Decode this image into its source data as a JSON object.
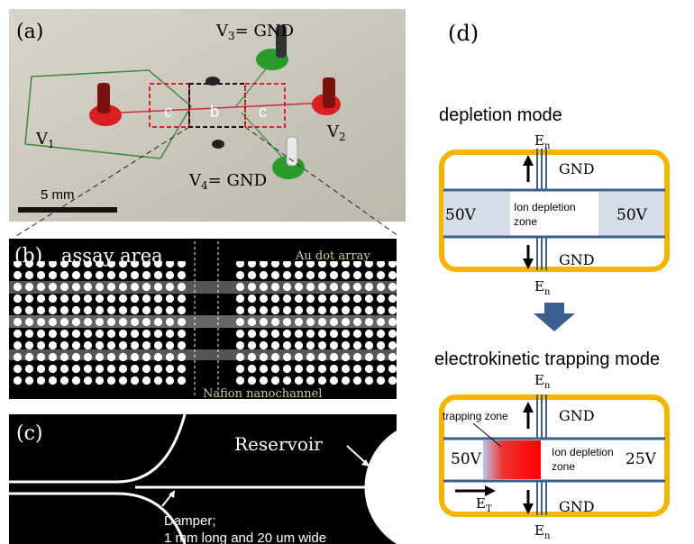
{
  "panel_a": {
    "label": "(a)",
    "v3": [
      "V",
      "3",
      "= GND"
    ],
    "v1": [
      "V",
      "1"
    ],
    "v2": [
      "V",
      "2"
    ],
    "v4": [
      "V",
      "4",
      "= GND"
    ],
    "box_left": "c",
    "box_middle": "b",
    "box_right": "c",
    "scale": "5 mm"
  },
  "panel_b": {
    "label": "(b)",
    "title": "assay area",
    "dots": "Au dot array",
    "channel": "Nafion nanochannel"
  },
  "panel_c": {
    "label": "(c)",
    "reservoir": "Reservoir",
    "damper": [
      "Damper;",
      "1 mm long and 20 um wide"
    ]
  },
  "panel_d": {
    "label": "(d)",
    "depletion": {
      "title": "depletion mode",
      "en_top": [
        "E",
        "n"
      ],
      "gnd_top": "GND",
      "left": "50V",
      "zone": [
        "Ion depletion",
        "zone"
      ],
      "right": "50V",
      "gnd_bottom": "GND",
      "en_bottom": [
        "E",
        "n"
      ]
    },
    "trapping": {
      "title": "electrokinetic trapping mode",
      "en_top": [
        "E",
        "n"
      ],
      "gnd_top": "GND",
      "trapping_zone": "trapping zone",
      "left": "50V",
      "zone": [
        "Ion depletion",
        "zone"
      ],
      "right": "25V",
      "et": [
        "E",
        "T"
      ],
      "gnd_bottom": "GND",
      "en_bottom": [
        "E",
        "n"
      ]
    }
  }
}
